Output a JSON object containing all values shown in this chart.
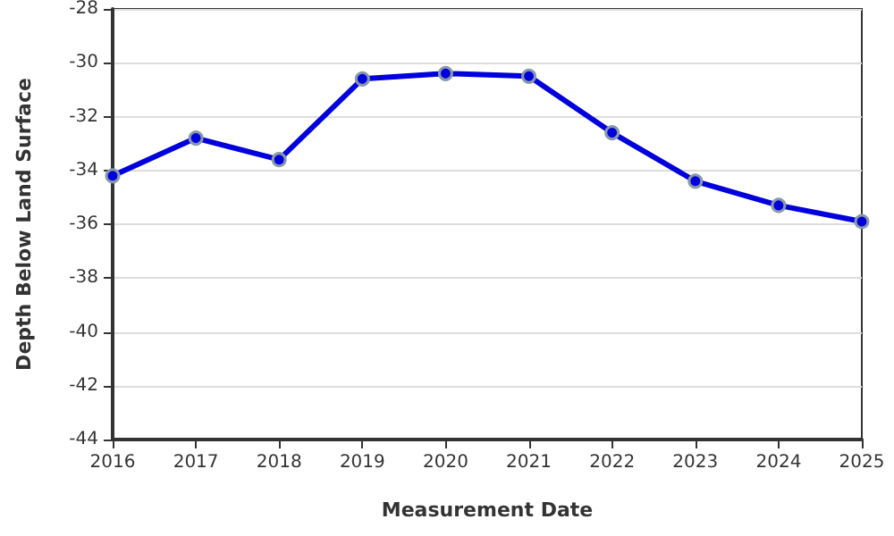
{
  "chart_data": {
    "type": "line",
    "xlabel": "Measurement Date",
    "ylabel": "Depth Below Land Surface",
    "x": [
      2016,
      2017,
      2018,
      2019,
      2020,
      2021,
      2022,
      2023,
      2024,
      2025
    ],
    "series": [
      {
        "color": "#0000dd",
        "values": [
          -34.2,
          -32.8,
          -33.6,
          -30.6,
          -30.4,
          -30.5,
          -32.6,
          -34.4,
          -35.3,
          -35.9
        ]
      }
    ],
    "xlim": [
      2016,
      2025
    ],
    "xticks": [
      2016,
      2017,
      2018,
      2019,
      2020,
      2021,
      2022,
      2023,
      2024,
      2025
    ],
    "ylim": [
      -44,
      -28
    ],
    "yticks": [
      -44,
      -42,
      -40,
      -38,
      -36,
      -34,
      -32,
      -30,
      -28
    ],
    "grid": "y",
    "marker": "circle",
    "line_style": "solid"
  }
}
